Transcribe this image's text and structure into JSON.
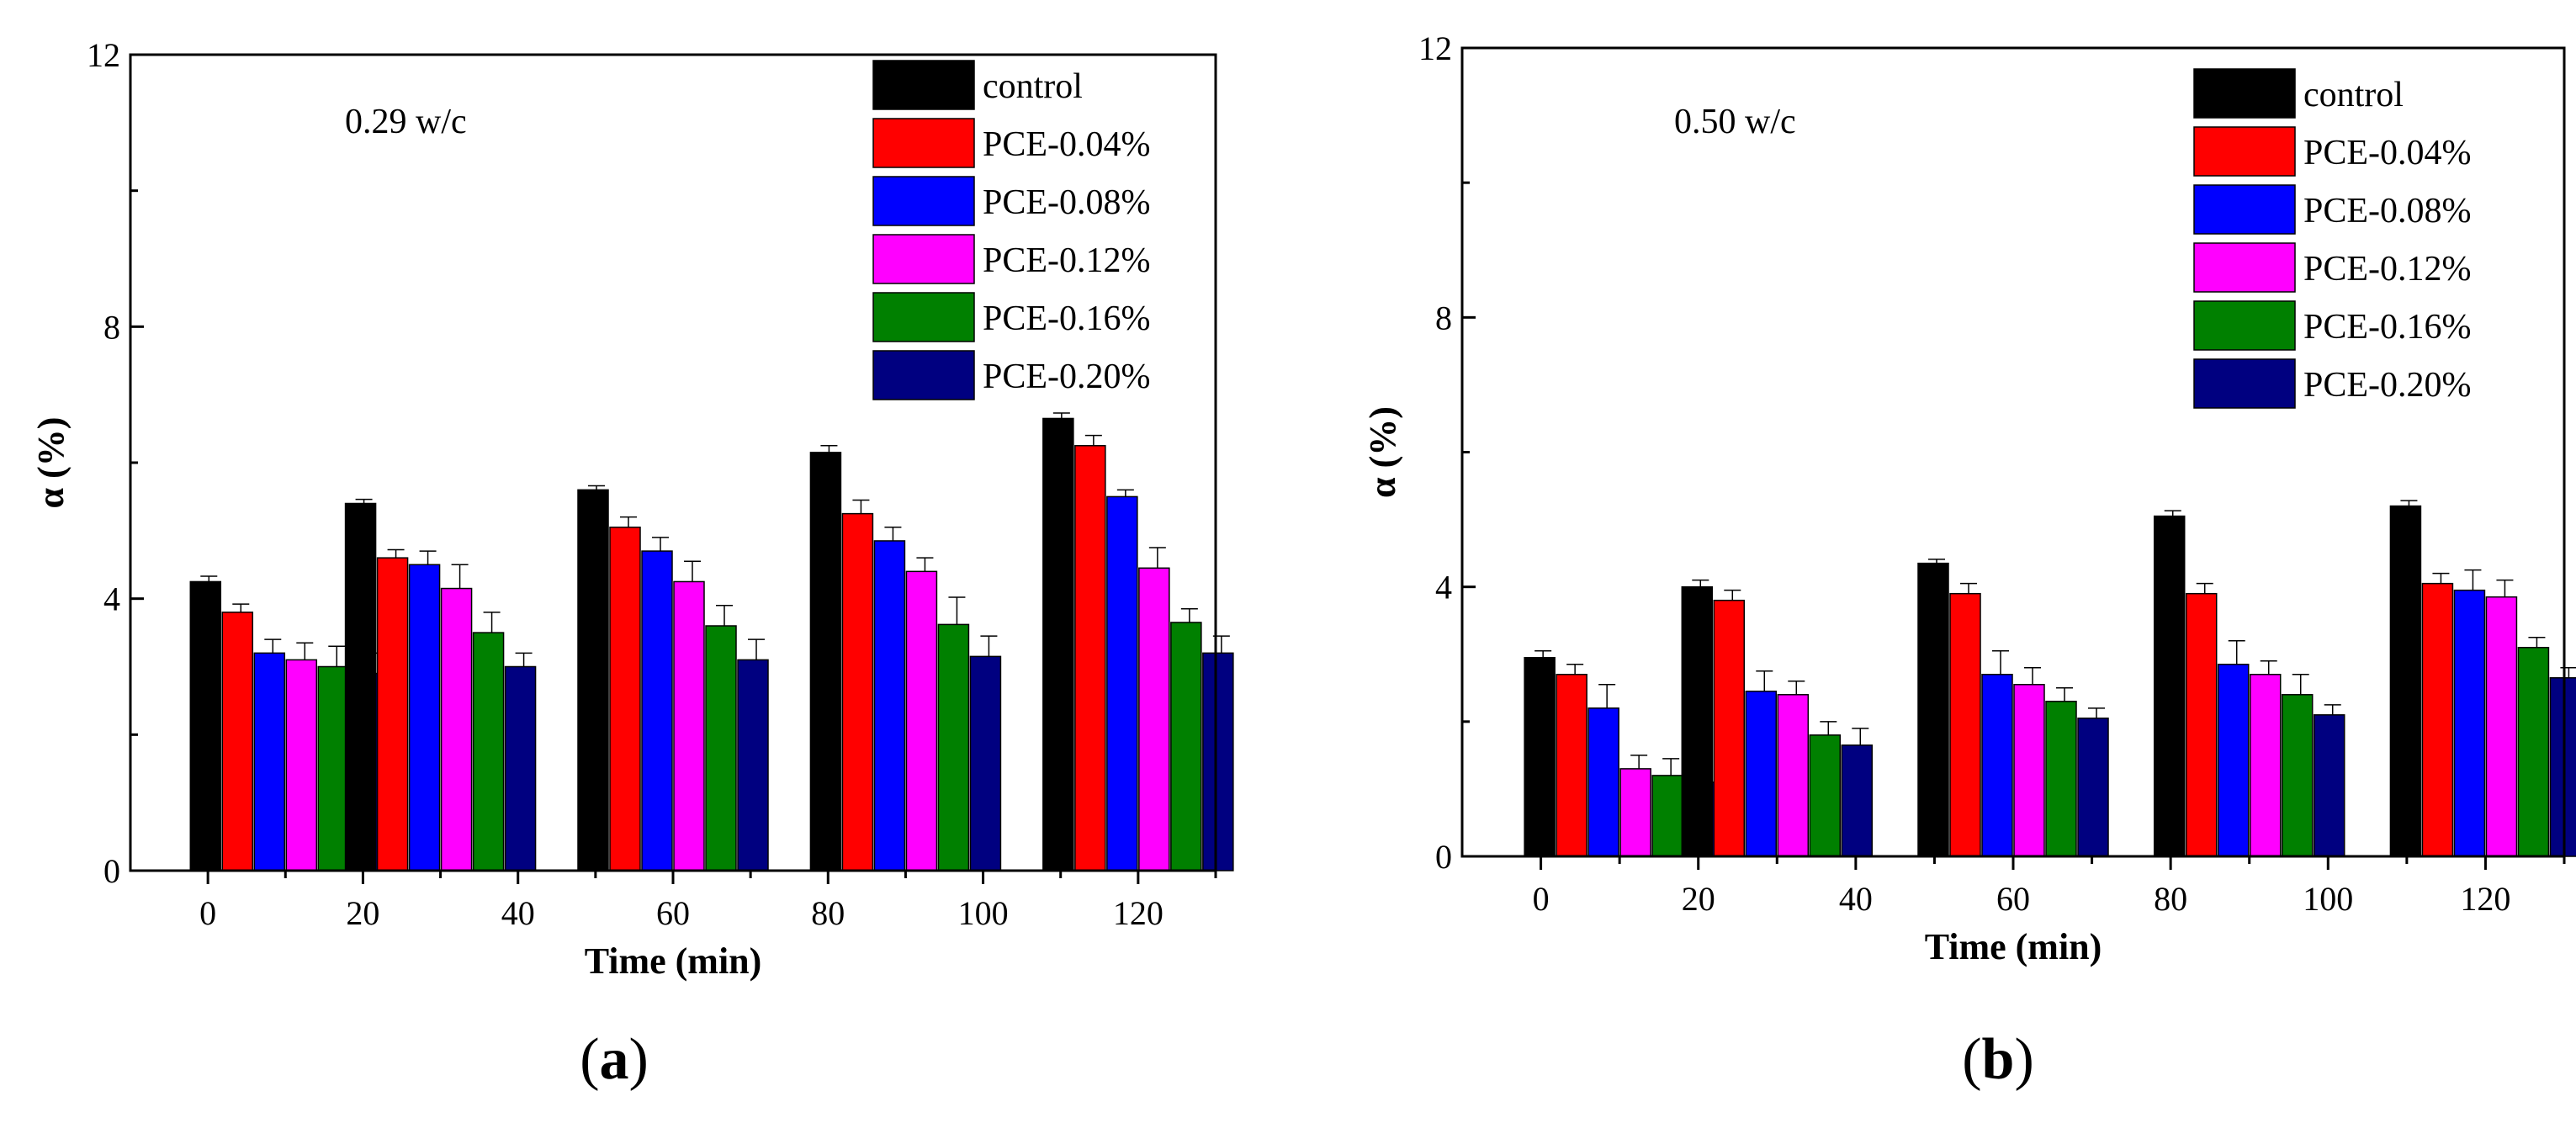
{
  "figure": {
    "series_names": [
      "control",
      "PCE-0.04%",
      "PCE-0.08%",
      "PCE-0.12%",
      "PCE-0.16%",
      "PCE-0.20%"
    ],
    "series_colors": [
      "#000000",
      "#ff0000",
      "#0000ff",
      "#ff00ff",
      "#008000",
      "#000080"
    ]
  },
  "chart_data": [
    {
      "type": "bar",
      "panel_label": "(a)",
      "panel_letter": "a",
      "annotation": "0.29 w/c",
      "xlabel": "Time (min)",
      "ylabel": "α (%)",
      "ylim": [
        0,
        12
      ],
      "yticks": [
        "0",
        "4",
        "8",
        "12"
      ],
      "xlim": [
        -10,
        130
      ],
      "xticks": [
        "0",
        "20",
        "40",
        "60",
        "80",
        "100",
        "120"
      ],
      "xtick_values": [
        0,
        20,
        40,
        60,
        80,
        100,
        120
      ],
      "group_centers": [
        10,
        30,
        60,
        90,
        120
      ],
      "legend_position": "top-right",
      "series": [
        {
          "name": "control",
          "values": [
            4.25,
            5.4,
            5.6,
            6.15,
            6.65
          ],
          "errors": [
            0.08,
            0.06,
            0.06,
            0.1,
            0.08
          ]
        },
        {
          "name": "PCE-0.04%",
          "values": [
            3.8,
            4.6,
            5.05,
            5.25,
            6.25
          ],
          "errors": [
            0.12,
            0.12,
            0.15,
            0.2,
            0.15
          ]
        },
        {
          "name": "PCE-0.08%",
          "values": [
            3.2,
            4.5,
            4.7,
            4.85,
            5.5
          ],
          "errors": [
            0.2,
            0.2,
            0.2,
            0.2,
            0.1
          ]
        },
        {
          "name": "PCE-0.12%",
          "values": [
            3.1,
            4.15,
            4.25,
            4.4,
            4.45
          ],
          "errors": [
            0.25,
            0.35,
            0.3,
            0.2,
            0.3
          ]
        },
        {
          "name": "PCE-0.16%",
          "values": [
            3.0,
            3.5,
            3.6,
            3.62,
            3.65
          ],
          "errors": [
            0.3,
            0.3,
            0.3,
            0.4,
            0.2
          ]
        },
        {
          "name": "PCE-0.20%",
          "values": [
            2.9,
            3.0,
            3.1,
            3.15,
            3.2
          ],
          "errors": [
            0.3,
            0.2,
            0.3,
            0.3,
            0.25
          ]
        }
      ]
    },
    {
      "type": "bar",
      "panel_label": "(b)",
      "panel_letter": "b",
      "annotation": "0.50 w/c",
      "xlabel": "Time (min)",
      "ylabel": "α (%)",
      "ylim": [
        0,
        12
      ],
      "yticks": [
        "0",
        "4",
        "8",
        "12"
      ],
      "xlim": [
        -10,
        130
      ],
      "xticks": [
        "0",
        "20",
        "40",
        "60",
        "80",
        "100",
        "120"
      ],
      "xtick_values": [
        0,
        20,
        40,
        60,
        80,
        100,
        120
      ],
      "group_centers": [
        10,
        30,
        60,
        90,
        120
      ],
      "legend_position": "top-right",
      "series": [
        {
          "name": "control",
          "values": [
            2.95,
            4.0,
            4.35,
            5.05,
            5.2
          ],
          "errors": [
            0.1,
            0.1,
            0.06,
            0.08,
            0.08
          ]
        },
        {
          "name": "PCE-0.04%",
          "values": [
            2.7,
            3.8,
            3.9,
            3.9,
            4.05
          ],
          "errors": [
            0.15,
            0.15,
            0.15,
            0.15,
            0.15
          ]
        },
        {
          "name": "PCE-0.08%",
          "values": [
            2.2,
            2.45,
            2.7,
            2.85,
            3.95
          ],
          "errors": [
            0.35,
            0.3,
            0.35,
            0.35,
            0.3
          ]
        },
        {
          "name": "PCE-0.12%",
          "values": [
            1.3,
            2.4,
            2.55,
            2.7,
            3.85
          ],
          "errors": [
            0.2,
            0.2,
            0.25,
            0.2,
            0.25
          ]
        },
        {
          "name": "PCE-0.16%",
          "values": [
            1.2,
            1.8,
            2.3,
            2.4,
            3.1
          ],
          "errors": [
            0.25,
            0.2,
            0.2,
            0.3,
            0.15
          ]
        },
        {
          "name": "PCE-0.20%",
          "values": [
            1.1,
            1.65,
            2.05,
            2.1,
            2.65
          ],
          "errors": [
            0.25,
            0.25,
            0.15,
            0.15,
            0.15
          ]
        }
      ]
    }
  ]
}
